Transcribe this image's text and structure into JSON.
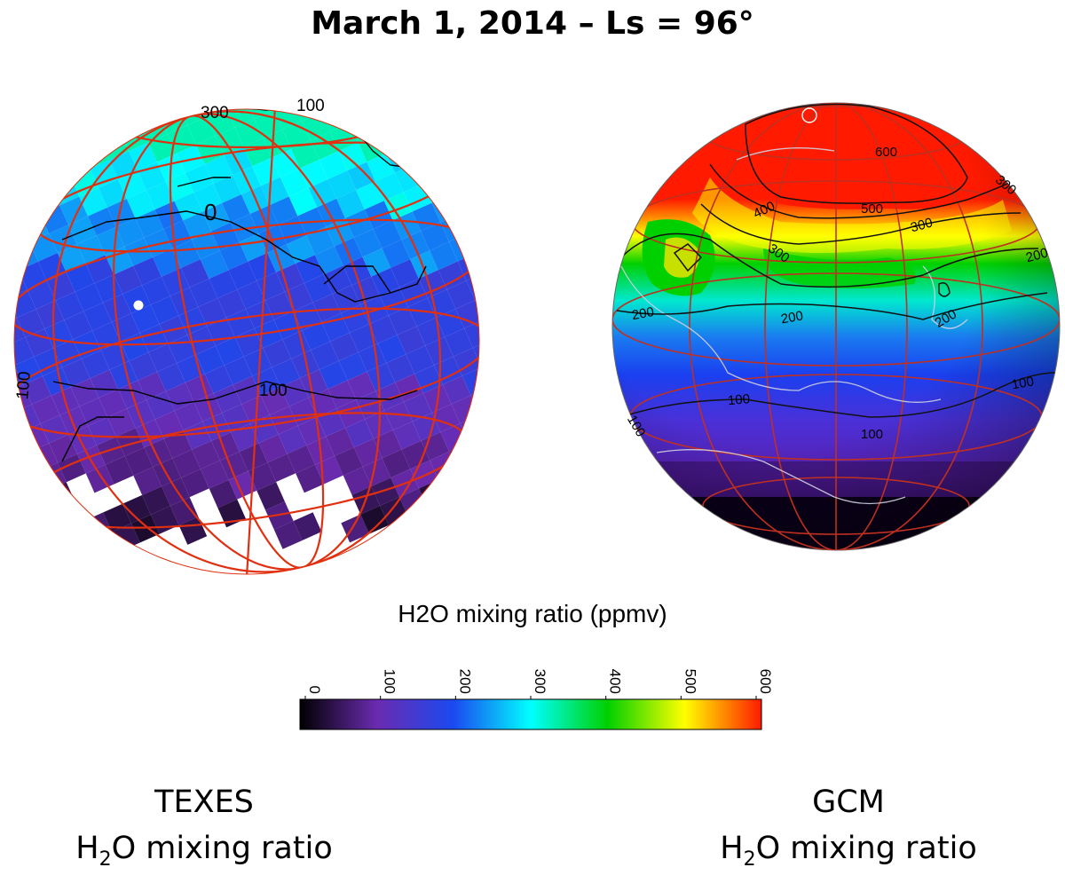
{
  "title": "March 1, 2014 – Ls = 96°",
  "colorbar": {
    "label": "H2O mixing ratio (ppmv)",
    "min": 0,
    "max": 600,
    "ticks": [
      "0",
      "100",
      "200",
      "300",
      "400",
      "500",
      "600"
    ],
    "stops": [
      "#000000",
      "#6b2bb0",
      "#1a4af0",
      "#00ffff",
      "#00d000",
      "#ffff00",
      "#ff1a00"
    ]
  },
  "captions": {
    "left": {
      "line1": "TEXES",
      "line2_pre": "H",
      "line2_sub": "2",
      "line2_post": "O mixing ratio"
    },
    "right": {
      "line1": "GCM",
      "line2_pre": "H",
      "line2_sub": "2",
      "line2_post": "O mixing ratio"
    }
  },
  "chart_data": [
    {
      "type": "heatmap",
      "panel": "TEXES",
      "contour_labels": [
        "300",
        "100",
        "100",
        "100",
        "0"
      ],
      "colorbar_range": [
        0,
        600
      ]
    },
    {
      "type": "heatmap",
      "panel": "GCM",
      "contour_labels": [
        "600",
        "500",
        "400",
        "300",
        "300",
        "200",
        "200",
        "200",
        "200",
        "300",
        "100",
        "100",
        "100",
        "100"
      ],
      "colorbar_range": [
        0,
        600
      ]
    }
  ]
}
